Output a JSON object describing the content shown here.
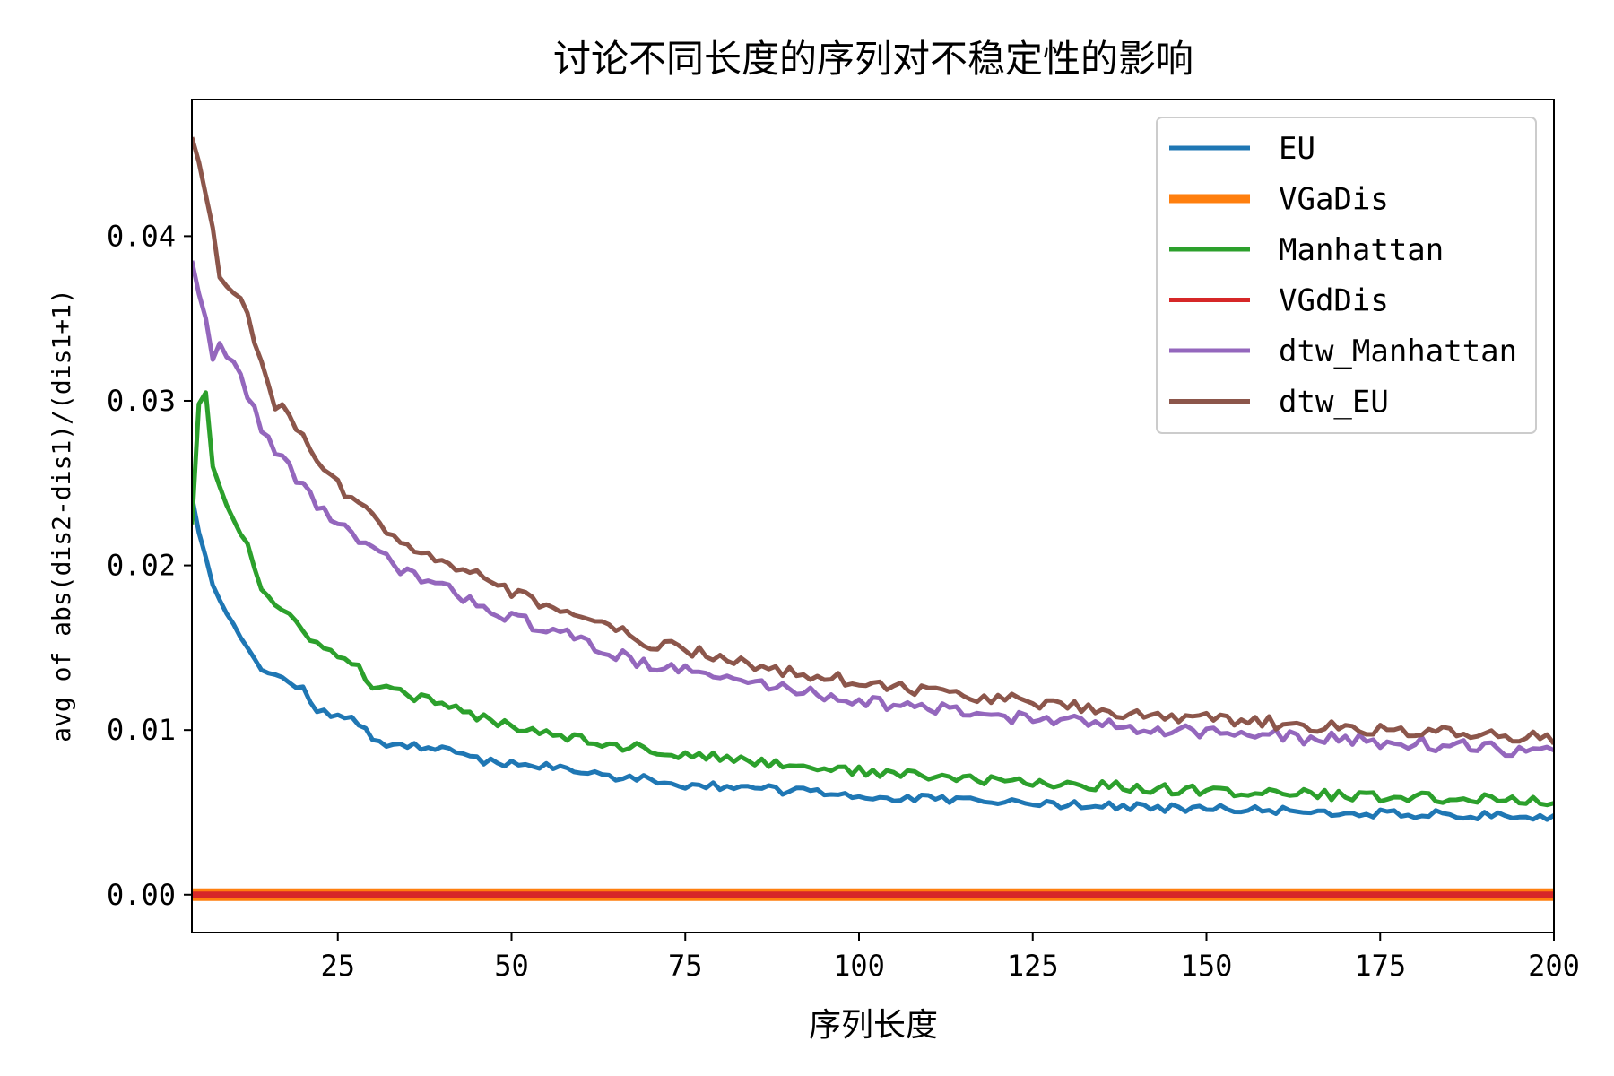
{
  "chart_data": {
    "type": "line",
    "title": "讨论不同长度的序列对不稳定性的影响",
    "xlabel": "序列长度",
    "ylabel": "avg of abs(dis2-dis1)/(dis1+1)",
    "xlim": [
      4,
      200
    ],
    "ylim": [
      -0.0023,
      0.0483
    ],
    "x_ticks": [
      25,
      50,
      75,
      100,
      125,
      150,
      175,
      200
    ],
    "x_tick_labels": [
      "25",
      "50",
      "75",
      "100",
      "125",
      "150",
      "175",
      "200"
    ],
    "y_ticks": [
      0.0,
      0.01,
      0.02,
      0.03,
      0.04
    ],
    "y_tick_labels": [
      "0.00",
      "0.01",
      "0.02",
      "0.03",
      "0.04"
    ],
    "grid": false,
    "legend_position": "top-right",
    "x": {
      "start": 4,
      "end": 200,
      "step": 1
    },
    "series": [
      {
        "name": "EU",
        "color": "#1f77b4",
        "anchors": [
          [
            4,
            0.0242
          ],
          [
            5,
            0.022
          ],
          [
            6,
            0.0205
          ],
          [
            7,
            0.0188
          ],
          [
            8,
            0.0179
          ],
          [
            10,
            0.0165
          ],
          [
            12,
            0.0152
          ],
          [
            14,
            0.0136
          ],
          [
            18,
            0.013
          ],
          [
            20,
            0.0124
          ],
          [
            22,
            0.0112
          ],
          [
            25,
            0.0109
          ],
          [
            28,
            0.0104
          ],
          [
            30,
            0.0095
          ],
          [
            32,
            0.0092
          ],
          [
            35,
            0.0091
          ],
          [
            40,
            0.0088
          ],
          [
            45,
            0.0082
          ],
          [
            50,
            0.008
          ],
          [
            55,
            0.0078
          ],
          [
            60,
            0.0074
          ],
          [
            65,
            0.0072
          ],
          [
            70,
            0.007
          ],
          [
            75,
            0.0067
          ],
          [
            80,
            0.0066
          ],
          [
            90,
            0.0063
          ],
          [
            100,
            0.006
          ],
          [
            110,
            0.0058
          ],
          [
            120,
            0.0056
          ],
          [
            130,
            0.0055
          ],
          [
            140,
            0.0053
          ],
          [
            150,
            0.0052
          ],
          [
            160,
            0.0051
          ],
          [
            170,
            0.005
          ],
          [
            180,
            0.0049
          ],
          [
            190,
            0.0048
          ],
          [
            200,
            0.0047
          ]
        ],
        "noise": 0.00025,
        "seed": 11
      },
      {
        "name": "VGaDis",
        "color": "#ff7f0e",
        "anchors": [
          [
            4,
            0.0
          ],
          [
            200,
            0.0
          ]
        ],
        "noise": 0,
        "seed": 0
      },
      {
        "name": "Manhattan",
        "color": "#2ca02c",
        "anchors": [
          [
            4,
            0.0225
          ],
          [
            5,
            0.0298
          ],
          [
            6,
            0.0305
          ],
          [
            7,
            0.026
          ],
          [
            8,
            0.0248
          ],
          [
            10,
            0.0228
          ],
          [
            12,
            0.0213
          ],
          [
            14,
            0.0185
          ],
          [
            16,
            0.0175
          ],
          [
            18,
            0.0168
          ],
          [
            20,
            0.0162
          ],
          [
            22,
            0.0152
          ],
          [
            25,
            0.0145
          ],
          [
            28,
            0.0137
          ],
          [
            30,
            0.0128
          ],
          [
            32,
            0.0124
          ],
          [
            35,
            0.0122
          ],
          [
            40,
            0.0115
          ],
          [
            45,
            0.0108
          ],
          [
            50,
            0.0103
          ],
          [
            55,
            0.0099
          ],
          [
            60,
            0.0095
          ],
          [
            65,
            0.0091
          ],
          [
            70,
            0.0088
          ],
          [
            75,
            0.0085
          ],
          [
            80,
            0.0083
          ],
          [
            90,
            0.0079
          ],
          [
            100,
            0.0075
          ],
          [
            110,
            0.0072
          ],
          [
            120,
            0.0069
          ],
          [
            130,
            0.0067
          ],
          [
            140,
            0.0065
          ],
          [
            150,
            0.0063
          ],
          [
            160,
            0.0062
          ],
          [
            170,
            0.006
          ],
          [
            180,
            0.0059
          ],
          [
            190,
            0.0058
          ],
          [
            200,
            0.0057
          ]
        ],
        "noise": 0.0003,
        "seed": 23
      },
      {
        "name": "VGdDis",
        "color": "#d62728",
        "anchors": [
          [
            4,
            0.0
          ],
          [
            200,
            0.0
          ]
        ],
        "noise": 0,
        "seed": 0
      },
      {
        "name": "dtw_Manhattan",
        "color": "#9467bd",
        "anchors": [
          [
            4,
            0.0385
          ],
          [
            5,
            0.0365
          ],
          [
            6,
            0.035
          ],
          [
            7,
            0.0325
          ],
          [
            8,
            0.0335
          ],
          [
            10,
            0.0322
          ],
          [
            12,
            0.0305
          ],
          [
            14,
            0.0285
          ],
          [
            16,
            0.0268
          ],
          [
            18,
            0.026
          ],
          [
            20,
            0.0248
          ],
          [
            22,
            0.0238
          ],
          [
            25,
            0.0225
          ],
          [
            28,
            0.0215
          ],
          [
            30,
            0.0208
          ],
          [
            35,
            0.0196
          ],
          [
            40,
            0.0186
          ],
          [
            45,
            0.0178
          ],
          [
            50,
            0.0168
          ],
          [
            55,
            0.0162
          ],
          [
            60,
            0.0154
          ],
          [
            65,
            0.0146
          ],
          [
            70,
            0.014
          ],
          [
            75,
            0.0136
          ],
          [
            80,
            0.0132
          ],
          [
            90,
            0.0125
          ],
          [
            100,
            0.0118
          ],
          [
            110,
            0.0113
          ],
          [
            120,
            0.0109
          ],
          [
            130,
            0.0105
          ],
          [
            140,
            0.0102
          ],
          [
            150,
            0.0099
          ],
          [
            160,
            0.0096
          ],
          [
            170,
            0.0094
          ],
          [
            180,
            0.0092
          ],
          [
            190,
            0.0089
          ],
          [
            200,
            0.0086
          ]
        ],
        "noise": 0.0004,
        "seed": 37
      },
      {
        "name": "dtw_EU",
        "color": "#8c564b",
        "anchors": [
          [
            4,
            0.046
          ],
          [
            5,
            0.0445
          ],
          [
            6,
            0.0425
          ],
          [
            7,
            0.0405
          ],
          [
            8,
            0.0375
          ],
          [
            10,
            0.0368
          ],
          [
            12,
            0.0352
          ],
          [
            14,
            0.032
          ],
          [
            16,
            0.0298
          ],
          [
            18,
            0.029
          ],
          [
            20,
            0.0278
          ],
          [
            22,
            0.0265
          ],
          [
            25,
            0.0248
          ],
          [
            28,
            0.0238
          ],
          [
            30,
            0.0228
          ],
          [
            35,
            0.0214
          ],
          [
            40,
            0.0204
          ],
          [
            45,
            0.0194
          ],
          [
            50,
            0.0184
          ],
          [
            55,
            0.0176
          ],
          [
            60,
            0.0168
          ],
          [
            65,
            0.016
          ],
          [
            70,
            0.0153
          ],
          [
            75,
            0.0148
          ],
          [
            80,
            0.0144
          ],
          [
            90,
            0.0136
          ],
          [
            100,
            0.0129
          ],
          [
            110,
            0.0124
          ],
          [
            120,
            0.0119
          ],
          [
            130,
            0.0114
          ],
          [
            140,
            0.011
          ],
          [
            150,
            0.0107
          ],
          [
            160,
            0.0104
          ],
          [
            170,
            0.0101
          ],
          [
            180,
            0.0099
          ],
          [
            190,
            0.0097
          ],
          [
            200,
            0.0095
          ]
        ],
        "noise": 0.0004,
        "seed": 53
      }
    ]
  }
}
